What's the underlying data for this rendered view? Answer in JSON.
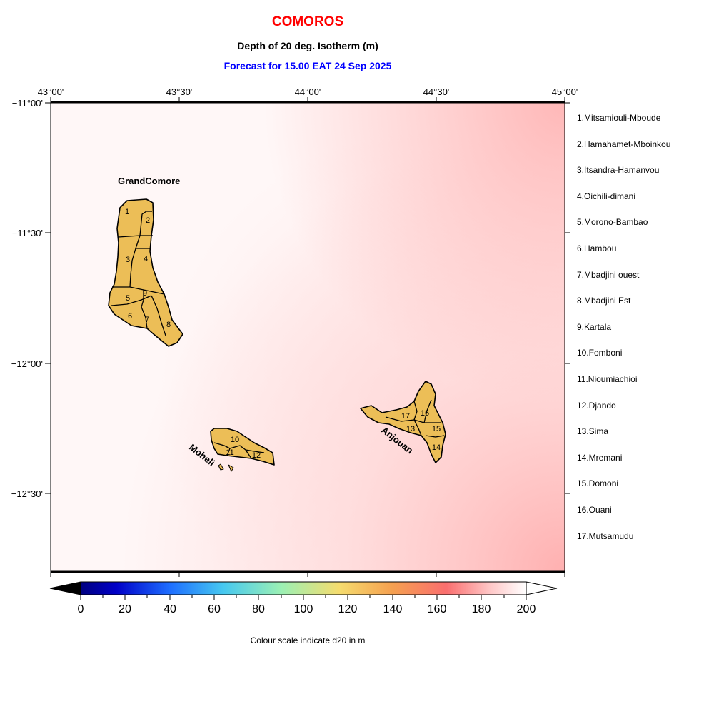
{
  "header": {
    "country": "COMOROS",
    "subtitle": "Depth of 20 deg. Isotherm (m)",
    "forecast": "Forecast for  15.00 EAT 24 Sep 2025"
  },
  "colors": {
    "title": "#ff0000",
    "forecast": "#0000ff",
    "land": "#ecbe57"
  },
  "axes": {
    "lon_labels": [
      "43°00'",
      "43°30'",
      "44°00'",
      "44°30'",
      "45°00'"
    ],
    "lat_labels": [
      "−11°00'",
      "−11°30'",
      "−12°00'",
      "−12°30'"
    ]
  },
  "islands": {
    "grand_comore": "GrandComore",
    "moheli": "Moheli",
    "anjouan": "Anjouan"
  },
  "region_numbers": [
    "1",
    "2",
    "3",
    "4",
    "5",
    "6",
    "7",
    "8",
    "9",
    "10",
    "11",
    "12",
    "13",
    "14",
    "15",
    "16",
    "17"
  ],
  "regions": [
    "1.Mitsamiouli-Mboude",
    "2.Hamahamet-Mboinkou",
    "3.Itsandra-Hamanvou",
    "4.Oichili-dimani",
    "5.Morono-Bambao",
    "6.Hambou",
    "7.Mbadjini ouest",
    "8.Mbadjini Est",
    "9.Kartala",
    "10.Fomboni",
    "11.Nioumiachioi",
    "12.Djando",
    "13.Sima",
    "14.Mremani",
    "15.Domoni",
    "16.Ouani",
    "17.Mutsamudu"
  ],
  "colorbar": {
    "ticks": [
      "0",
      "20",
      "40",
      "60",
      "80",
      "100",
      "120",
      "140",
      "160",
      "180",
      "200"
    ],
    "caption": "Colour scale indicate d20 in m"
  }
}
